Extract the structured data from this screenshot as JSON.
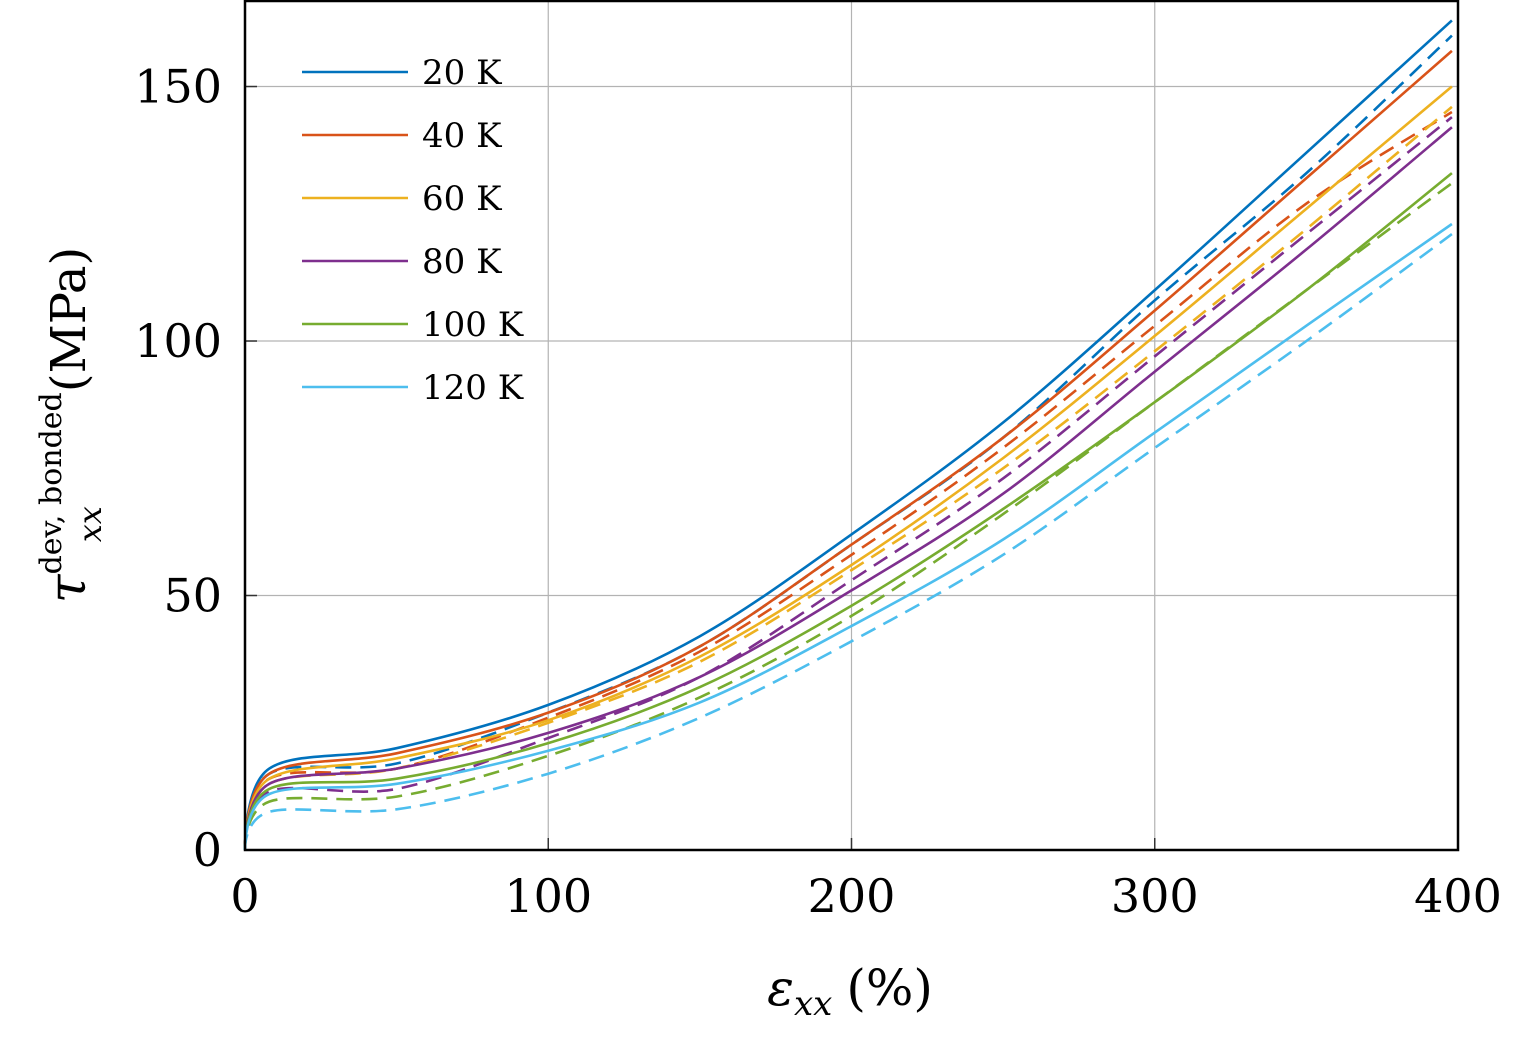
{
  "chart_data": {
    "type": "line",
    "xlabel": "ε_xx (%)",
    "xlabel_parts": {
      "symbol": "ε",
      "sub": "xx",
      "unit": "(%)"
    },
    "ylabel": "τ_xx^dev,bonded (MPa)",
    "ylabel_parts": {
      "symbol": "τ",
      "sub": "xx",
      "sup": "dev, bonded",
      "unit": "(MPa)"
    },
    "xlim": [
      0,
      400
    ],
    "ylim": [
      0,
      167
    ],
    "xticks": [
      0,
      100,
      200,
      300,
      400
    ],
    "yticks": [
      0,
      50,
      100,
      150
    ],
    "xtick_labels": [
      "0",
      "100",
      "200",
      "300",
      "400"
    ],
    "ytick_labels": [
      "0",
      "50",
      "100",
      "150"
    ],
    "grid": true,
    "legend": "top-left",
    "series": [
      {
        "name": "20 K",
        "color": "#0072BD",
        "solid": {
          "x": [
            0,
            8,
            50,
            100,
            150,
            200,
            250,
            300,
            350,
            398
          ],
          "y": [
            0,
            16,
            20,
            28.5,
            42,
            62,
            84,
            110,
            137,
            163
          ]
        },
        "dashed": {
          "x": [
            0,
            8,
            50,
            100,
            150,
            200,
            250,
            300,
            350,
            398
          ],
          "y": [
            0,
            15,
            17,
            27,
            40,
            60,
            81,
            108,
            133,
            160
          ]
        }
      },
      {
        "name": "40 K",
        "color": "#D95319",
        "solid": {
          "x": [
            0,
            8,
            50,
            100,
            150,
            200,
            250,
            300,
            350,
            398
          ],
          "y": [
            0,
            15,
            19,
            27,
            40,
            60,
            81,
            106,
            132,
            157
          ]
        },
        "dashed": {
          "x": [
            0,
            8,
            50,
            100,
            150,
            200,
            250,
            300,
            350,
            398
          ],
          "y": [
            0,
            14,
            16,
            26,
            39,
            58,
            79,
            103,
            127,
            145
          ]
        }
      },
      {
        "name": "60 K",
        "color": "#EDB120",
        "solid": {
          "x": [
            0,
            8,
            50,
            100,
            150,
            200,
            250,
            300,
            350,
            398
          ],
          "y": [
            0,
            14,
            18,
            25.5,
            38,
            56,
            77,
            101,
            126,
            150
          ]
        },
        "dashed": {
          "x": [
            0,
            8,
            50,
            100,
            150,
            200,
            250,
            300,
            350,
            398
          ],
          "y": [
            0,
            13,
            16,
            25,
            37,
            55,
            75,
            98,
            122,
            146
          ]
        }
      },
      {
        "name": "80 K",
        "color": "#7E2F8E",
        "solid": {
          "x": [
            0,
            8,
            50,
            100,
            150,
            200,
            250,
            300,
            350,
            398
          ],
          "y": [
            0,
            13,
            16,
            23,
            34,
            51,
            70,
            94,
            118,
            142
          ]
        },
        "dashed": {
          "x": [
            0,
            8,
            50,
            100,
            150,
            200,
            250,
            300,
            350,
            398
          ],
          "y": [
            0,
            11.5,
            12,
            22,
            34,
            53,
            73,
            97,
            121,
            144
          ]
        }
      },
      {
        "name": "100 K",
        "color": "#77AC30",
        "solid": {
          "x": [
            0,
            8,
            50,
            100,
            150,
            200,
            250,
            300,
            350,
            398
          ],
          "y": [
            0,
            12,
            14,
            21,
            32,
            48,
            67,
            88,
            110,
            133
          ]
        },
        "dashed": {
          "x": [
            0,
            8,
            50,
            100,
            150,
            200,
            250,
            300,
            350,
            398
          ],
          "y": [
            0,
            9.5,
            10.5,
            18.5,
            30,
            46,
            66,
            88,
            110,
            131
          ]
        }
      },
      {
        "name": "120 K",
        "color": "#4DBEEE",
        "solid": {
          "x": [
            0,
            8,
            50,
            100,
            150,
            200,
            250,
            300,
            350,
            398
          ],
          "y": [
            0,
            11,
            13,
            19.5,
            29,
            44,
            61,
            82,
            103,
            123
          ]
        },
        "dashed": {
          "x": [
            0,
            8,
            50,
            100,
            150,
            200,
            250,
            300,
            350,
            398
          ],
          "y": [
            0,
            7.5,
            8,
            15,
            26,
            41,
            58,
            79,
            100,
            121
          ]
        }
      }
    ]
  }
}
